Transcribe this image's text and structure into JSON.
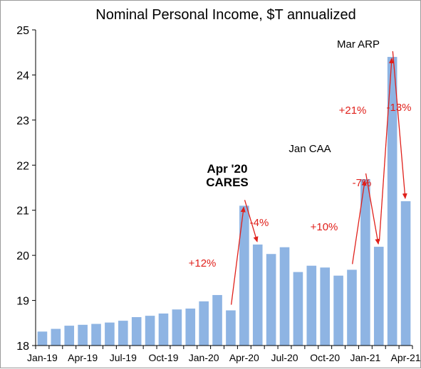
{
  "chart_data": {
    "type": "bar",
    "title": "Nominal Personal Income, $T annualized",
    "xlabel": "",
    "ylabel": "",
    "ylim": [
      18,
      25
    ],
    "yticks": [
      18,
      19,
      20,
      21,
      22,
      23,
      24,
      25
    ],
    "categories": [
      "Jan-19",
      "Feb-19",
      "Mar-19",
      "Apr-19",
      "May-19",
      "Jun-19",
      "Jul-19",
      "Aug-19",
      "Sep-19",
      "Oct-19",
      "Nov-19",
      "Dec-19",
      "Jan-20",
      "Feb-20",
      "Mar-20",
      "Apr-20",
      "May-20",
      "Jun-20",
      "Jul-20",
      "Aug-20",
      "Sep-20",
      "Oct-20",
      "Nov-20",
      "Dec-20",
      "Jan-21",
      "Feb-21",
      "Mar-21",
      "Apr-21"
    ],
    "xtick_labels": [
      "Jan-19",
      "Apr-19",
      "Jul-19",
      "Oct-19",
      "Jan-20",
      "Apr-20",
      "Jul-20",
      "Oct-20",
      "Jan-21",
      "Apr-21"
    ],
    "values": [
      18.31,
      18.37,
      18.44,
      18.46,
      18.48,
      18.51,
      18.55,
      18.63,
      18.66,
      18.71,
      18.8,
      18.82,
      18.98,
      19.12,
      18.78,
      21.1,
      20.24,
      20.03,
      20.18,
      19.63,
      19.77,
      19.73,
      19.55,
      19.68,
      21.69,
      20.19,
      24.4,
      21.2
    ],
    "bar_color": "#8eb4e3",
    "grid": false,
    "legend": "none",
    "annotations": {
      "cares_line1": "Apr '20",
      "cares_line2": "CARES",
      "jan_caa": "Jan CAA",
      "mar_arp": "Mar ARP",
      "pct_plus12": "+12%",
      "pct_minus4": "-4%",
      "pct_plus10": "+10%",
      "pct_minus7": "-7%",
      "pct_plus21": "+21%",
      "pct_minus13": "-13%"
    },
    "arrow_color": "#e0201b"
  }
}
